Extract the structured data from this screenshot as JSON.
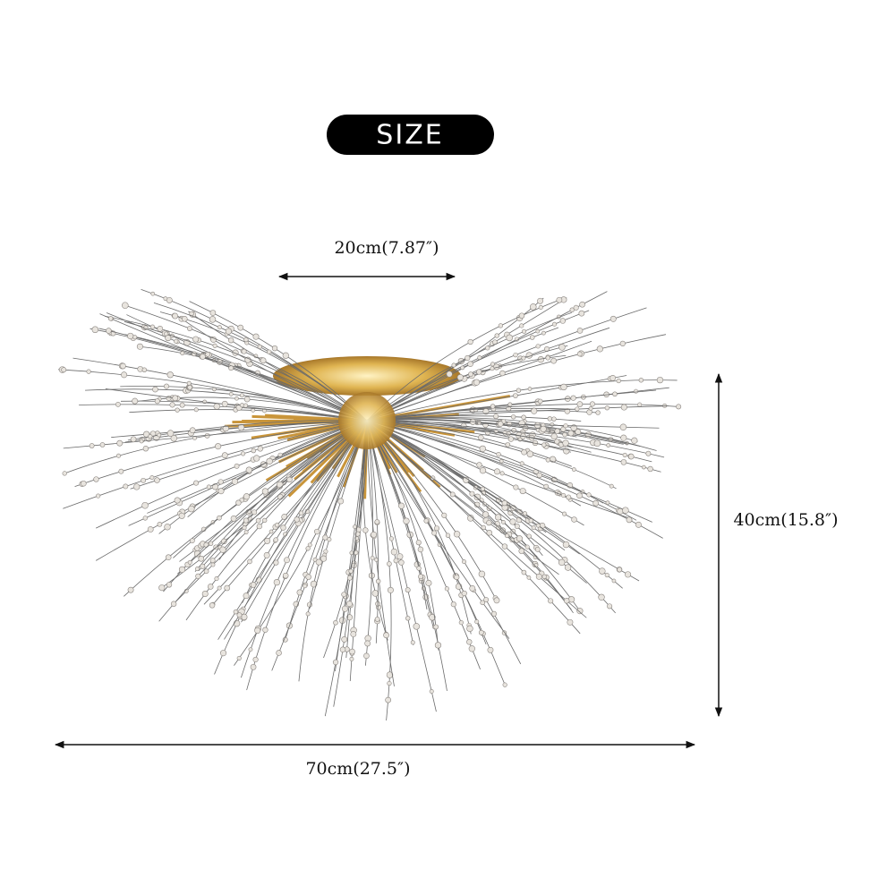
{
  "header": {
    "title": "SIZE"
  },
  "dimensions": {
    "top_width": "20cm(7.87″)",
    "height": "40cm(15.8″)",
    "width": "70cm(27.5″)"
  }
}
